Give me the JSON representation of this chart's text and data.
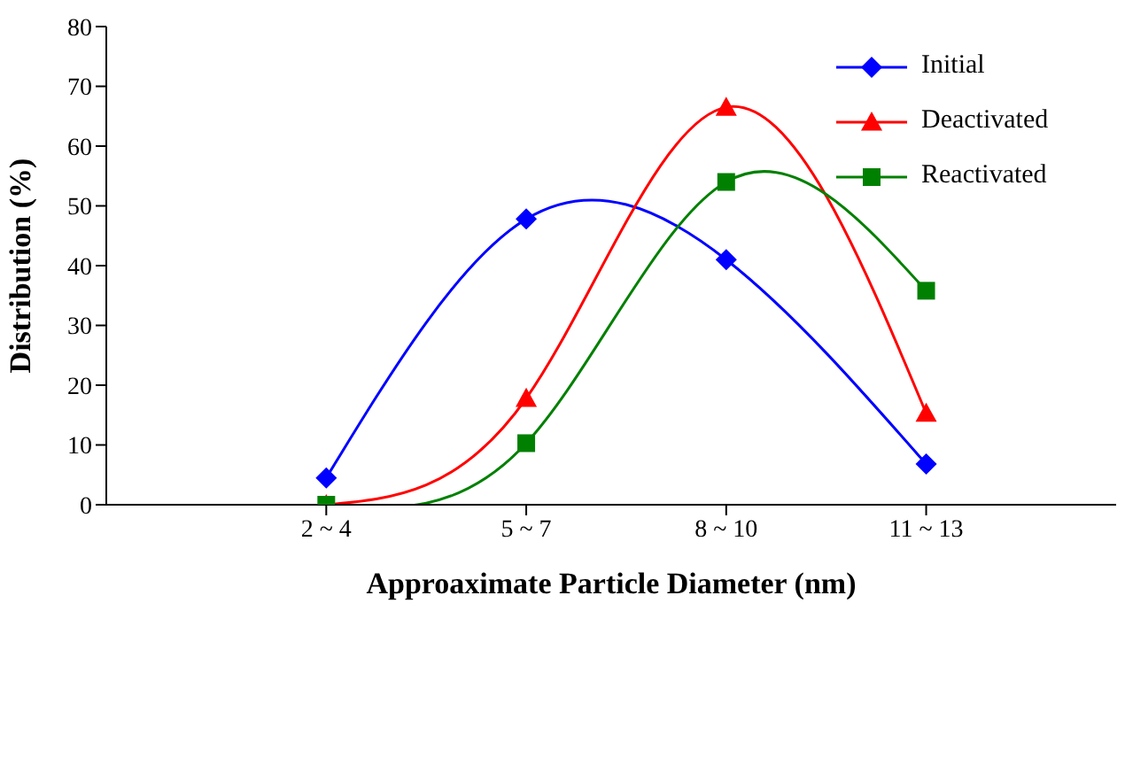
{
  "chart_data": {
    "type": "line",
    "xlabel": "Approaximate Particle Diameter (nm)",
    "ylabel": "Distribution (%)",
    "categories": [
      "2 ~ 4",
      "5 ~ 7",
      "8 ~ 10",
      "11 ~ 13"
    ],
    "ylim": [
      0,
      80
    ],
    "yticks": [
      0,
      10,
      20,
      30,
      40,
      50,
      60,
      70,
      80
    ],
    "grid": false,
    "legend": "top right",
    "series": [
      {
        "name": "Initial",
        "color": "#0000ff",
        "marker": "diamond",
        "values": [
          4.5,
          47.8,
          41,
          6.8
        ]
      },
      {
        "name": "Deactivated",
        "color": "#ff0000",
        "marker": "triangle",
        "values": [
          0,
          17.8,
          66.5,
          15.3
        ]
      },
      {
        "name": "Reactivated",
        "color": "#008000",
        "marker": "square",
        "values": [
          0,
          10.3,
          54,
          35.8
        ]
      }
    ]
  }
}
